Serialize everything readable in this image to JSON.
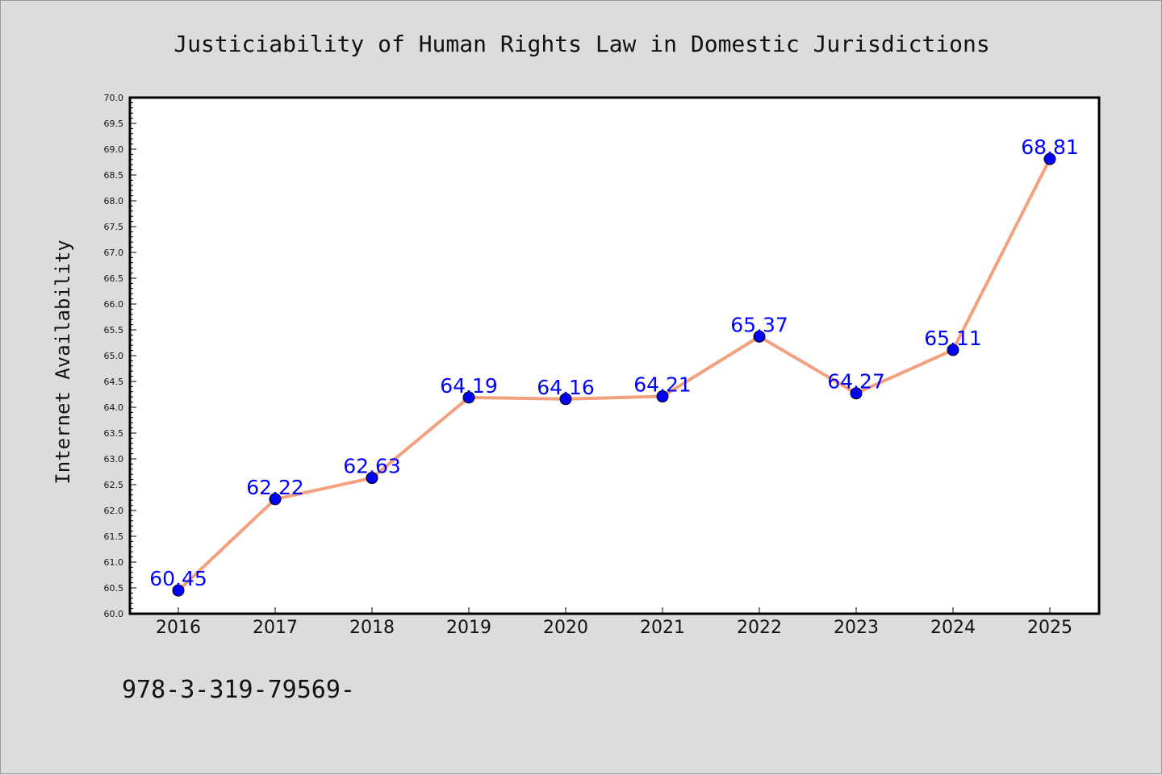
{
  "chart_data": {
    "type": "line",
    "title": "Justiciability of Human Rights Law in Domestic Jurisdictions",
    "xlabel": "",
    "ylabel": "Internet Availability",
    "categories": [
      "2016",
      "2017",
      "2018",
      "2019",
      "2020",
      "2021",
      "2022",
      "2023",
      "2024",
      "2025"
    ],
    "series": [
      {
        "values": [
          60.45,
          62.22,
          62.63,
          64.19,
          64.16,
          64.21,
          65.37,
          64.27,
          65.11,
          68.81
        ],
        "data_labels": [
          "60.45",
          "62.22",
          "62.63",
          "64.19",
          "64.16",
          "64.21",
          "65.37",
          "64.27",
          "65.11",
          "68.81"
        ],
        "line_color": "#f4a07e",
        "marker_color": "#0000ff",
        "label_color": "#0000ff"
      }
    ],
    "ylim": [
      60.0,
      70.0
    ],
    "yticks": [
      "60.0",
      "60.5",
      "61.0",
      "61.5",
      "62.0",
      "62.5",
      "63.0",
      "63.5",
      "64.0",
      "64.5",
      "65.0",
      "65.5",
      "66.0",
      "66.5",
      "67.0",
      "67.5",
      "68.0",
      "68.5",
      "69.0",
      "69.5",
      "70.0"
    ],
    "grid": false,
    "legend": "none"
  },
  "footnote": "978-3-319-79569-",
  "colors": {
    "background": "#dcdcdc",
    "plot_area": "#ffffff",
    "axes": "#000000"
  }
}
